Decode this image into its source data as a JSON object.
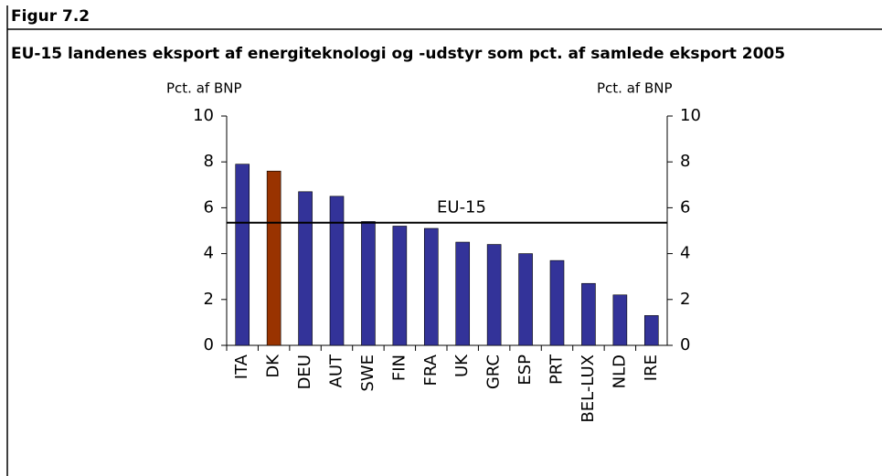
{
  "figure_label": "Figur 7.2",
  "chart_data": {
    "type": "bar",
    "title": "EU-15 landenes eksport af energiteknologi og -udstyr som pct. af samlede eksport 2005",
    "ylabel": "Pct. af BNP",
    "y2label": "Pct. af BNP",
    "categories": [
      "ITA",
      "DK",
      "DEU",
      "AUT",
      "SWE",
      "FIN",
      "FRA",
      "UK",
      "GRC",
      "ESP",
      "PRT",
      "BEL-LUX",
      "NLD",
      "IRE"
    ],
    "values": [
      7.9,
      7.6,
      6.7,
      6.5,
      5.4,
      5.2,
      5.1,
      4.5,
      4.4,
      4.0,
      3.7,
      2.7,
      2.2,
      1.3
    ],
    "colors": [
      "#333399",
      "#993300",
      "#333399",
      "#333399",
      "#333399",
      "#333399",
      "#333399",
      "#333399",
      "#333399",
      "#333399",
      "#333399",
      "#333399",
      "#333399",
      "#333399"
    ],
    "reference_line": {
      "label": "EU-15",
      "value": 5.35
    },
    "ylim": [
      0,
      10
    ],
    "yticks": [
      0,
      2,
      4,
      6,
      8,
      10
    ],
    "y2lim": [
      0,
      10
    ],
    "y2ticks": [
      0,
      2,
      4,
      6,
      8,
      10
    ]
  }
}
